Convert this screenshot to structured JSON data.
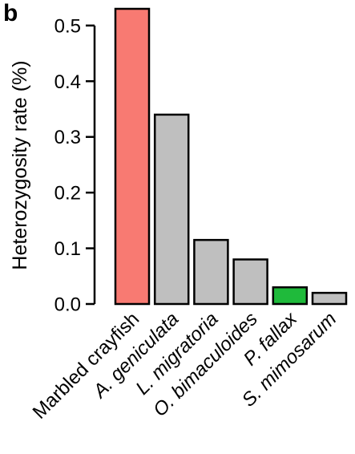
{
  "panel_label": "b",
  "chart_data": {
    "type": "bar",
    "title": "",
    "xlabel": "",
    "ylabel": "Heterozygosity rate (%)",
    "ylim": [
      0,
      0.53
    ],
    "yticks": [
      0.0,
      0.1,
      0.2,
      0.3,
      0.4,
      0.5
    ],
    "ytick_labels": [
      "0.0",
      "0.1",
      "0.2",
      "0.3",
      "0.4",
      "0.5"
    ],
    "categories": [
      "Marbled crayfish",
      "A. geniculata",
      "L. migratoria",
      "O. bimaculoides",
      "P. fallax",
      "S. mimosarum"
    ],
    "category_italic": [
      false,
      true,
      true,
      true,
      true,
      true
    ],
    "values": [
      0.53,
      0.34,
      0.115,
      0.08,
      0.03,
      0.02
    ],
    "bar_colors": [
      "#f87a72",
      "#bfbfbf",
      "#bfbfbf",
      "#bfbfbf",
      "#1fba3b",
      "#bfbfbf"
    ],
    "grid": false,
    "legend": "none"
  }
}
